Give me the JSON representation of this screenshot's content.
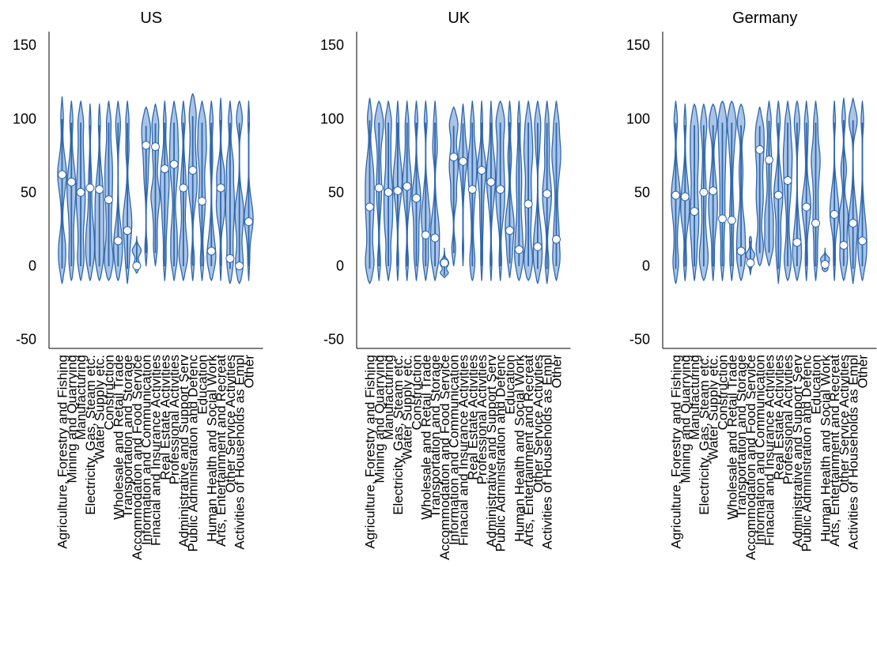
{
  "chart_data": {
    "type": "violin",
    "ylim": [
      -55,
      160
    ],
    "yticks": [
      -50,
      0,
      50,
      100,
      150
    ],
    "grid": false,
    "legend": "none",
    "colors": {
      "violin_fill": "#a9c4e6",
      "violin_stroke": "#2f67ad",
      "marker_fill": "#ffffff",
      "marker_stroke": "#2f67ad"
    },
    "categories": [
      "Agriculture, Forestry and Fishing",
      "Mining and Quarrying",
      "Manufacturing",
      "Electricity, Gas, Steam etc.",
      "Water Supply etc.",
      "Construction",
      "Wholesale and Retail Trade",
      "Transportation and Storage",
      "Accommodation and Food Service",
      "Information and Communication",
      "Finacial and Insurance Activities",
      "Real Estate Activities",
      "Professional Activities",
      "Administrative and Support Serv",
      "Public Administration and Defenc",
      "Education",
      "Human Health and Social Work",
      "Arts, Entertainment and Recreat",
      "Other Service Activities",
      "Activities of Households as Empl",
      "Other"
    ],
    "panels": [
      {
        "title": "US",
        "medians": [
          62,
          57,
          50,
          53,
          52,
          45,
          17,
          24,
          0,
          82,
          81,
          66,
          69,
          53,
          65,
          44,
          10,
          53,
          5,
          0,
          30
        ],
        "ranges": [
          [
            -12,
            115
          ],
          [
            -10,
            112
          ],
          [
            -10,
            112
          ],
          [
            -10,
            110
          ],
          [
            -10,
            110
          ],
          [
            -10,
            112
          ],
          [
            -10,
            112
          ],
          [
            -12,
            112
          ],
          [
            -5,
            20
          ],
          [
            0,
            108
          ],
          [
            0,
            110
          ],
          [
            -10,
            112
          ],
          [
            -10,
            112
          ],
          [
            -10,
            112
          ],
          [
            -10,
            117
          ],
          [
            -10,
            112
          ],
          [
            -10,
            112
          ],
          [
            -10,
            114
          ],
          [
            -12,
            112
          ],
          [
            -12,
            112
          ],
          [
            -10,
            112
          ]
        ]
      },
      {
        "title": "UK",
        "medians": [
          40,
          53,
          50,
          51,
          54,
          46,
          21,
          19,
          2,
          74,
          71,
          52,
          65,
          57,
          52,
          24,
          11,
          42,
          13,
          49,
          18
        ],
        "ranges": [
          [
            -12,
            114
          ],
          [
            -10,
            112
          ],
          [
            -10,
            112
          ],
          [
            -10,
            112
          ],
          [
            -10,
            112
          ],
          [
            -10,
            112
          ],
          [
            -10,
            112
          ],
          [
            -10,
            112
          ],
          [
            -8,
            12
          ],
          [
            0,
            108
          ],
          [
            0,
            110
          ],
          [
            -10,
            112
          ],
          [
            -10,
            112
          ],
          [
            -10,
            112
          ],
          [
            -10,
            112
          ],
          [
            -8,
            112
          ],
          [
            -10,
            112
          ],
          [
            -10,
            112
          ],
          [
            -12,
            112
          ],
          [
            -12,
            112
          ],
          [
            -10,
            112
          ]
        ]
      },
      {
        "title": "Germany",
        "medians": [
          48,
          47,
          37,
          50,
          51,
          32,
          31,
          10,
          2,
          79,
          72,
          48,
          58,
          16,
          40,
          29,
          1,
          35,
          14,
          29,
          17
        ],
        "ranges": [
          [
            -12,
            112
          ],
          [
            -10,
            110
          ],
          [
            -10,
            110
          ],
          [
            -10,
            110
          ],
          [
            -10,
            110
          ],
          [
            -10,
            112
          ],
          [
            -10,
            112
          ],
          [
            -10,
            110
          ],
          [
            -6,
            20
          ],
          [
            0,
            108
          ],
          [
            0,
            112
          ],
          [
            -12,
            112
          ],
          [
            -10,
            112
          ],
          [
            -10,
            112
          ],
          [
            -10,
            112
          ],
          [
            -10,
            112
          ],
          [
            -4,
            12
          ],
          [
            -10,
            112
          ],
          [
            -10,
            114
          ],
          [
            -12,
            114
          ],
          [
            -10,
            112
          ]
        ]
      }
    ]
  }
}
